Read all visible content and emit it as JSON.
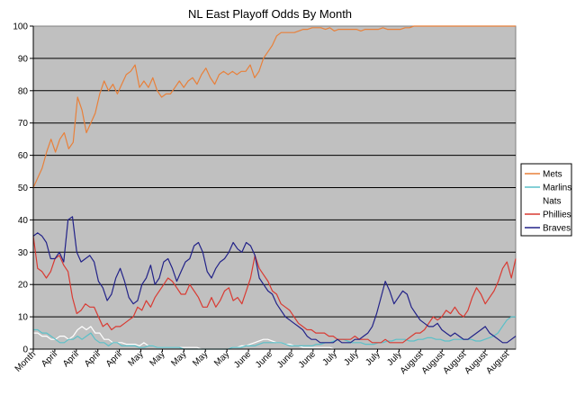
{
  "chart_data": {
    "type": "line",
    "title": "NL East Playoff Odds By Month",
    "xlabel": "",
    "ylabel": "",
    "ylim": [
      0,
      100
    ],
    "yticks": [
      0,
      10,
      20,
      30,
      40,
      50,
      60,
      70,
      80,
      90,
      100
    ],
    "grid": "horizontal",
    "legend_position": "right",
    "plot_background": "#c0c0c0",
    "x_tick_labels": [
      "Month",
      "April",
      "April",
      "April",
      "April",
      "May",
      "May",
      "May",
      "May",
      "May",
      "June",
      "June",
      "June",
      "June",
      "July",
      "July",
      "July",
      "July",
      "August",
      "August",
      "August",
      "August",
      "August"
    ],
    "series": [
      {
        "name": "Mets",
        "color": "#e8803a",
        "values": [
          50,
          53,
          56,
          61,
          65,
          61,
          65,
          67,
          62,
          64,
          78,
          74,
          67,
          70,
          73,
          79,
          83,
          80,
          82,
          79,
          82,
          85,
          86,
          88,
          81,
          83,
          81,
          84,
          80,
          78,
          79,
          79,
          81,
          83,
          81,
          83,
          84,
          82,
          85,
          87,
          84,
          82,
          85,
          86,
          85,
          86,
          85,
          86,
          86,
          88,
          84,
          86,
          90,
          92,
          94,
          97,
          98,
          98,
          98,
          98,
          98.5,
          99,
          99,
          99.5,
          99.5,
          99.5,
          99,
          99.5,
          98.5,
          99,
          99,
          99,
          99,
          99,
          98.5,
          99,
          99,
          99,
          99,
          99.5,
          99,
          99,
          99,
          99,
          99.5,
          99.5,
          100,
          100,
          100,
          100,
          100,
          100,
          100,
          100,
          100,
          100,
          100,
          100,
          100,
          100,
          100,
          100,
          100,
          100,
          100,
          100,
          100,
          100,
          100,
          100
        ]
      },
      {
        "name": "Marlins",
        "color": "#5bc0c8",
        "values": [
          6,
          6,
          5,
          5,
          4,
          3,
          2,
          2,
          3,
          3,
          4,
          3,
          4,
          5,
          3,
          2,
          2,
          1,
          2,
          2,
          1,
          1,
          1,
          1,
          0.5,
          0.5,
          1,
          1,
          0.5,
          0.5,
          0.5,
          0.5,
          0.5,
          0.5,
          0,
          0,
          0,
          0,
          0,
          0,
          0,
          0,
          0,
          0,
          0,
          0.5,
          0.5,
          0.5,
          1,
          1,
          1,
          1.5,
          2,
          2,
          2,
          2,
          2,
          1.5,
          1,
          1,
          1,
          1,
          1,
          1,
          1.5,
          1.5,
          2,
          2,
          2.5,
          3,
          3,
          2.5,
          2,
          2,
          2,
          1.5,
          1.5,
          1.5,
          2,
          2,
          2.5,
          2.5,
          3,
          3,
          3,
          2.5,
          2.5,
          3,
          3,
          3.5,
          3.5,
          3,
          3,
          2.5,
          2.5,
          3,
          3,
          3,
          3,
          3,
          2.5,
          2.5,
          3,
          3.5,
          4,
          5,
          7,
          9,
          10,
          10
        ]
      },
      {
        "name": "Nats",
        "color": "#ffffff",
        "values": [
          5,
          5,
          4,
          4,
          3,
          3,
          4,
          4,
          3,
          4,
          6,
          7,
          6,
          7,
          5,
          5,
          3,
          3,
          2,
          2,
          2,
          1.5,
          1.5,
          1.5,
          1,
          2,
          1,
          1,
          0.5,
          0.5,
          0.5,
          0.5,
          0.5,
          0.5,
          0.5,
          0.5,
          0.5,
          0.5,
          0,
          0,
          0,
          0,
          0,
          0,
          0,
          0.5,
          0.5,
          1,
          1,
          1.5,
          2,
          2.5,
          3,
          3,
          2.5,
          2,
          2,
          1.5,
          1.5,
          1,
          1,
          0.5,
          0.5,
          0.5,
          0.5,
          0.5,
          0.5,
          0.5,
          0,
          0,
          0,
          0,
          0,
          0,
          0,
          0,
          0,
          0,
          0,
          0,
          0,
          0,
          0,
          0,
          0,
          0,
          0,
          0,
          0,
          0,
          0,
          0,
          0,
          0,
          0,
          0,
          0,
          0,
          0,
          0,
          0,
          0,
          0,
          0,
          0,
          0,
          0,
          0,
          0,
          0
        ]
      },
      {
        "name": "Phillies",
        "color": "#d93a32",
        "values": [
          35,
          25,
          24,
          22,
          24,
          28,
          29,
          26,
          24,
          16,
          11,
          12,
          14,
          13,
          13,
          10,
          7,
          8,
          6,
          7,
          7,
          8,
          9,
          10,
          13,
          12,
          15,
          13,
          16,
          18,
          20,
          22,
          21,
          19,
          17,
          17,
          20,
          18,
          16,
          13,
          13,
          16,
          13,
          15,
          18,
          19,
          15,
          16,
          14,
          18,
          22,
          29,
          25,
          23,
          21,
          18,
          17,
          14,
          13,
          12,
          10,
          8,
          7,
          6,
          6,
          5,
          5,
          5,
          4,
          4,
          3,
          3,
          3,
          3,
          4,
          3,
          3,
          3,
          2,
          2,
          2,
          3,
          2,
          2,
          2,
          2,
          3,
          4,
          5,
          5,
          6,
          8,
          10,
          9,
          10,
          12,
          11,
          13,
          11,
          10,
          12,
          16,
          19,
          17,
          14,
          16,
          18,
          21,
          25,
          27,
          22,
          28
        ]
      },
      {
        "name": "Braves",
        "color": "#222288",
        "values": [
          35,
          36,
          35,
          33,
          28,
          28,
          30,
          27,
          40,
          41,
          30,
          27,
          28,
          29,
          27,
          21,
          19,
          15,
          17,
          22,
          25,
          21,
          16,
          14,
          15,
          20,
          22,
          26,
          20,
          22,
          27,
          28,
          25,
          21,
          24,
          27,
          28,
          32,
          33,
          30,
          24,
          22,
          25,
          27,
          28,
          30,
          33,
          31,
          30,
          33,
          32,
          29,
          22,
          20,
          18,
          17,
          14,
          12,
          10,
          9,
          8,
          7,
          6,
          4,
          3,
          3,
          2,
          2,
          2,
          2,
          3,
          2,
          2,
          2,
          3,
          3,
          4,
          5,
          7,
          11,
          16,
          21,
          18,
          14,
          16,
          18,
          17,
          13,
          11,
          9,
          8,
          7,
          7,
          8,
          6,
          5,
          4,
          5,
          4,
          3,
          3,
          4,
          5,
          6,
          7,
          5,
          4,
          3,
          2,
          2,
          3,
          4
        ]
      }
    ]
  }
}
